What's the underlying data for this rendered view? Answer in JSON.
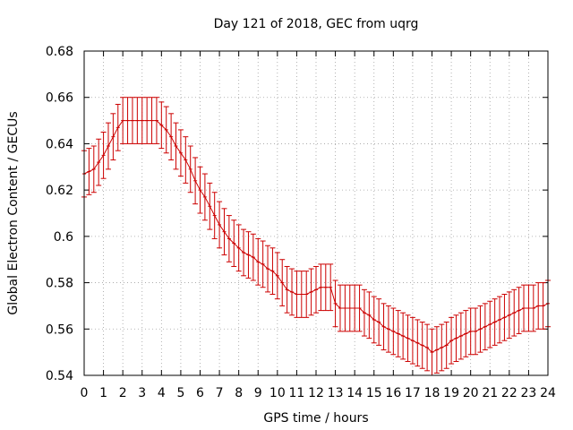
{
  "chart_data": {
    "type": "line",
    "title": "Day 121 of 2018, GEC from uqrg",
    "xlabel": "GPS time / hours",
    "ylabel": "Global Electron Content / GECUs",
    "xlim": [
      0,
      24
    ],
    "ylim": [
      0.54,
      0.68
    ],
    "x_ticks": [
      "0",
      "1",
      "2",
      "3",
      "4",
      "5",
      "6",
      "7",
      "8",
      "9",
      "10",
      "11",
      "12",
      "13",
      "14",
      "15",
      "16",
      "17",
      "18",
      "19",
      "20",
      "21",
      "22",
      "23",
      "24"
    ],
    "y_ticks": [
      "0.54",
      "0.56",
      "0.58",
      "0.6",
      "0.62",
      "0.64",
      "0.66",
      "0.68"
    ],
    "grid": true,
    "error_bar": 0.01,
    "series": [
      {
        "color": "#cc0000",
        "x": [
          0,
          0.25,
          0.5,
          0.75,
          1,
          1.25,
          1.5,
          1.75,
          2,
          2.25,
          2.5,
          2.75,
          3,
          3.25,
          3.5,
          3.75,
          4,
          4.25,
          4.5,
          4.75,
          5,
          5.25,
          5.5,
          5.75,
          6,
          6.25,
          6.5,
          6.75,
          7,
          7.25,
          7.5,
          7.75,
          8,
          8.25,
          8.5,
          8.75,
          9,
          9.25,
          9.5,
          9.75,
          10,
          10.25,
          10.5,
          10.75,
          11,
          11.25,
          11.5,
          11.75,
          12,
          12.25,
          12.5,
          12.75,
          13,
          13.25,
          13.5,
          13.75,
          14,
          14.25,
          14.5,
          14.75,
          15,
          15.25,
          15.5,
          15.75,
          16,
          16.25,
          16.5,
          16.75,
          17,
          17.25,
          17.5,
          17.75,
          18,
          18.25,
          18.5,
          18.75,
          19,
          19.25,
          19.5,
          19.75,
          20,
          20.25,
          20.5,
          20.75,
          21,
          21.25,
          21.5,
          21.75,
          22,
          22.25,
          22.5,
          22.75,
          23,
          23.25,
          23.5,
          23.75,
          24
        ],
        "y": [
          0.627,
          0.628,
          0.629,
          0.632,
          0.635,
          0.639,
          0.643,
          0.647,
          0.65,
          0.65,
          0.65,
          0.65,
          0.65,
          0.65,
          0.65,
          0.65,
          0.648,
          0.646,
          0.643,
          0.639,
          0.636,
          0.633,
          0.629,
          0.624,
          0.62,
          0.617,
          0.613,
          0.609,
          0.605,
          0.602,
          0.599,
          0.597,
          0.595,
          0.593,
          0.592,
          0.591,
          0.589,
          0.588,
          0.586,
          0.585,
          0.583,
          0.58,
          0.577,
          0.576,
          0.575,
          0.575,
          0.575,
          0.576,
          0.577,
          0.578,
          0.578,
          0.578,
          0.571,
          0.569,
          0.569,
          0.569,
          0.569,
          0.569,
          0.567,
          0.566,
          0.564,
          0.563,
          0.561,
          0.56,
          0.559,
          0.558,
          0.557,
          0.556,
          0.555,
          0.554,
          0.553,
          0.552,
          0.55,
          0.551,
          0.552,
          0.553,
          0.555,
          0.556,
          0.557,
          0.558,
          0.559,
          0.559,
          0.56,
          0.561,
          0.562,
          0.563,
          0.564,
          0.565,
          0.566,
          0.567,
          0.568,
          0.569,
          0.569,
          0.569,
          0.57,
          0.57,
          0.571
        ]
      }
    ]
  }
}
